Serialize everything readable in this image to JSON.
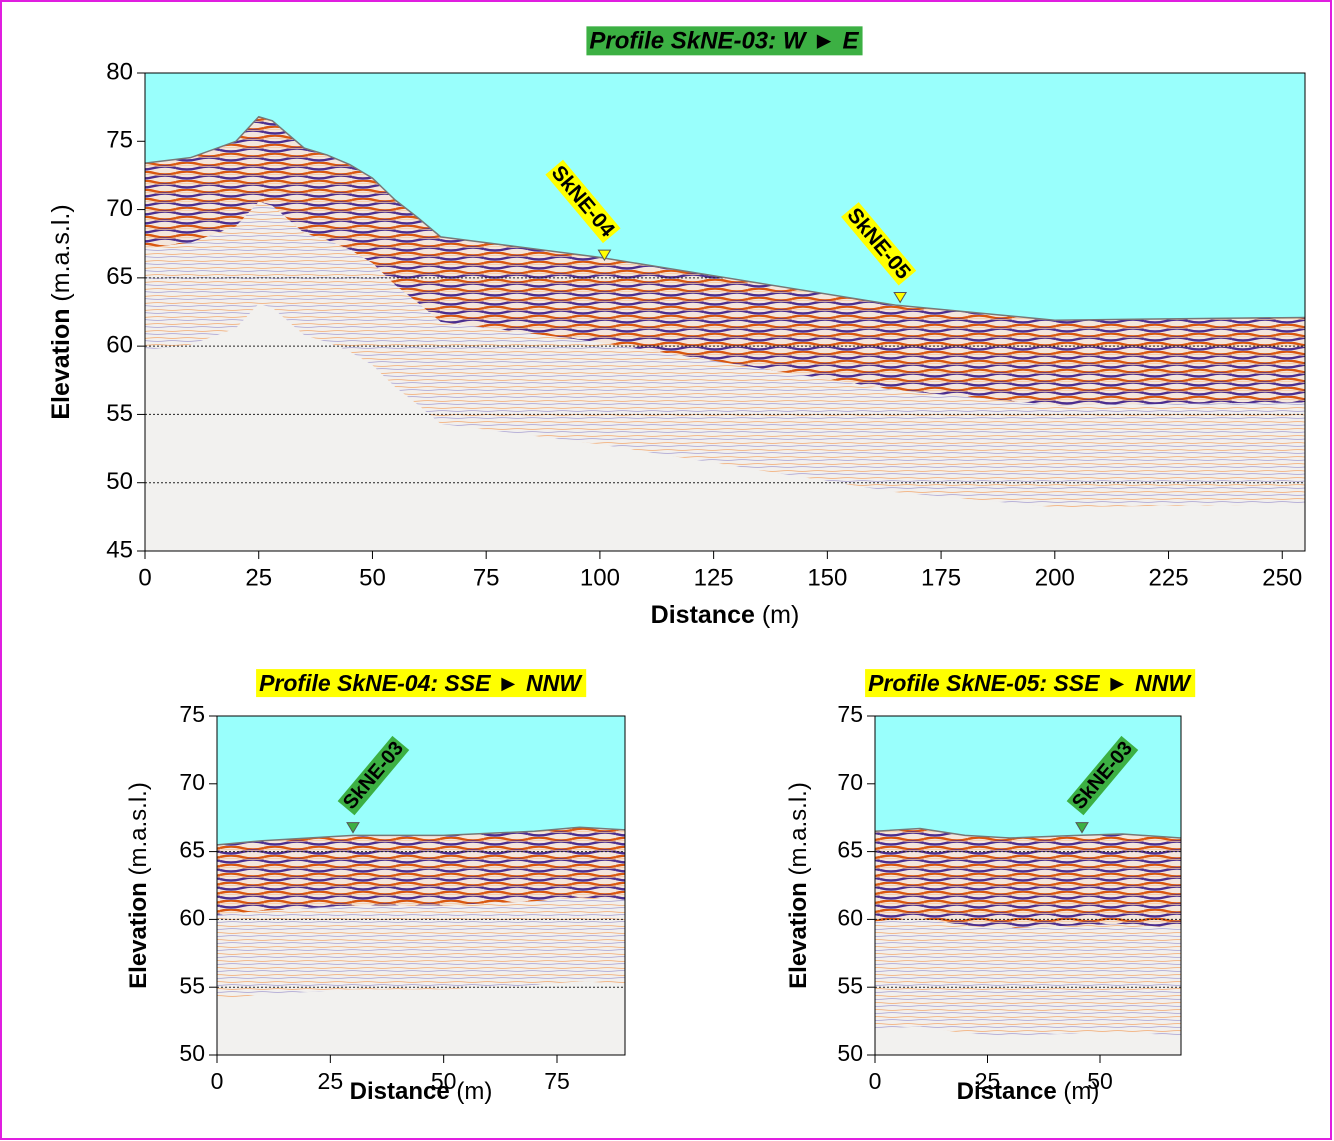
{
  "chart_data": [
    {
      "type": "profile",
      "title": "Profile SkNE-03: W ► E",
      "title_color": "#3cb043",
      "title_text_color": "#ffffff",
      "xlabel": "Distance",
      "xlabel_unit": "(m)",
      "ylabel": "Elevation",
      "ylabel_unit": "(m.a.s.l.)",
      "x": [
        0,
        10,
        20,
        25,
        28,
        35,
        40,
        45,
        50,
        55,
        60,
        65,
        100,
        165,
        200,
        225,
        255
      ],
      "elevation": [
        73.4,
        73.8,
        75,
        76.8,
        76.5,
        74.5,
        74,
        73.3,
        72.3,
        70.7,
        69.4,
        68,
        66.5,
        63,
        61.9,
        62,
        62.1
      ],
      "sky_color": "#99fffc",
      "markers": [
        {
          "label": "SkNE-04",
          "x": 101,
          "elevation": 66.3
        },
        {
          "label": "SkNE-05",
          "x": 166,
          "elevation": 63.2
        }
      ],
      "marker_color": "#ffff00",
      "marker_text_color": "#000000",
      "xlim": [
        0,
        255
      ],
      "ylim": [
        45,
        80
      ],
      "xticks": [
        0,
        25,
        50,
        75,
        100,
        125,
        150,
        175,
        200,
        225,
        250
      ],
      "yticks": [
        45,
        50,
        55,
        60,
        65,
        70,
        75,
        80
      ],
      "grid": [
        50,
        55,
        60,
        65
      ]
    },
    {
      "type": "profile",
      "title": "Profile SkNE-04: SSE ► NNW",
      "title_color": "#ffff00",
      "title_text_color": "#000000",
      "xlabel": "Distance",
      "xlabel_unit": "(m)",
      "ylabel": "Elevation",
      "ylabel_unit": "(m.a.s.l.)",
      "x": [
        0,
        10,
        30,
        50,
        70,
        80,
        90
      ],
      "elevation": [
        65.5,
        65.8,
        66.2,
        66.2,
        66.5,
        66.8,
        66.6
      ],
      "sky_color": "#99fffc",
      "markers": [
        {
          "label": "SkNE-03",
          "x": 30,
          "elevation": 66.4
        }
      ],
      "marker_color": "#3cb043",
      "marker_text_color": "#ffffff",
      "xlim": [
        0,
        90
      ],
      "ylim": [
        50,
        75
      ],
      "xticks": [
        0,
        25,
        50,
        75
      ],
      "yticks": [
        50,
        55,
        60,
        65,
        70,
        75
      ],
      "grid": [
        55,
        60,
        65
      ]
    },
    {
      "type": "profile",
      "title": "Profile SkNE-05: SSE ► NNW",
      "title_color": "#ffff00",
      "title_text_color": "#000000",
      "xlabel": "Distance",
      "xlabel_unit": "(m)",
      "ylabel": "Elevation",
      "ylabel_unit": "(m.a.s.l.)",
      "x": [
        0,
        10,
        20,
        30,
        45,
        55,
        68
      ],
      "elevation": [
        66.5,
        66.7,
        66.2,
        66,
        66.2,
        66.3,
        66
      ],
      "sky_color": "#99fffc",
      "markers": [
        {
          "label": "SkNE-03",
          "x": 46,
          "elevation": 66.4
        }
      ],
      "marker_color": "#3cb043",
      "marker_text_color": "#ffffff",
      "xlim": [
        0,
        68
      ],
      "ylim": [
        50,
        75
      ],
      "xticks": [
        0,
        25,
        50
      ],
      "yticks": [
        50,
        55,
        60,
        65,
        70,
        75
      ],
      "grid": [
        55,
        60,
        65
      ]
    }
  ]
}
